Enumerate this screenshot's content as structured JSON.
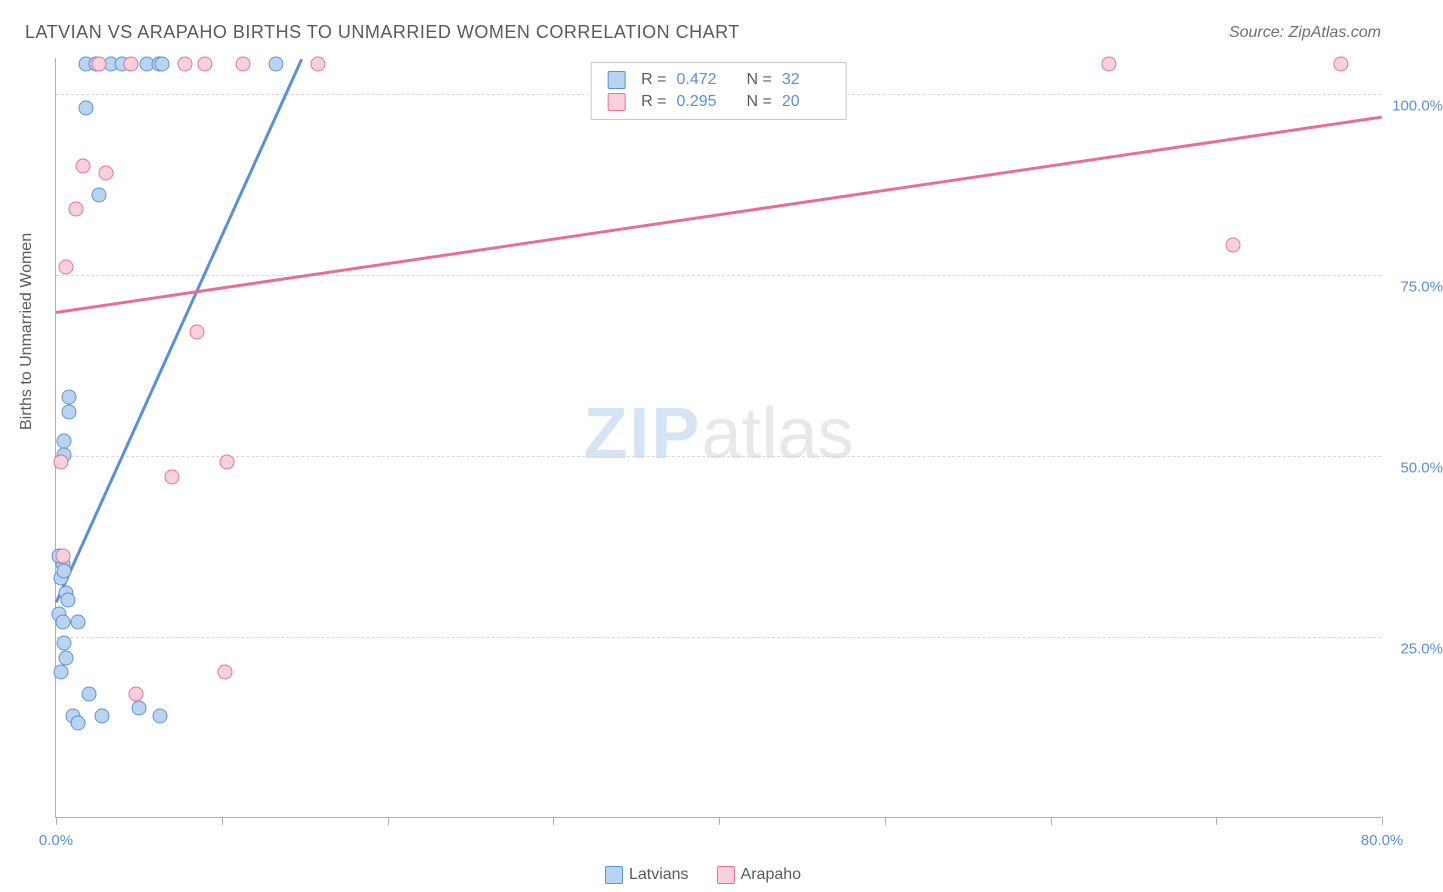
{
  "title": "LATVIAN VS ARAPAHO BIRTHS TO UNMARRIED WOMEN CORRELATION CHART",
  "source": "Source: ZipAtlas.com",
  "y_axis_title": "Births to Unmarried Women",
  "watermark": {
    "zip": "ZIP",
    "atlas": "atlas"
  },
  "chart": {
    "type": "scatter",
    "background_color": "#ffffff",
    "grid_color": "#d8d8d8",
    "axis_color": "#b0b0b0",
    "tick_label_color": "#5b8fd6",
    "axis_title_color": "#5a5a5a",
    "tick_label_fontsize": 15,
    "axis_title_fontsize": 16,
    "title_fontsize": 18,
    "xlim": [
      0,
      80
    ],
    "ylim": [
      0,
      105
    ],
    "y_ticks": [
      {
        "value": 25,
        "label": "25.0%"
      },
      {
        "value": 50,
        "label": "50.0%"
      },
      {
        "value": 75,
        "label": "75.0%"
      },
      {
        "value": 100,
        "label": "100.0%"
      }
    ],
    "x_ticks": [
      {
        "value": 0,
        "label": "0.0%"
      },
      {
        "value": 10,
        "label": ""
      },
      {
        "value": 20,
        "label": ""
      },
      {
        "value": 30,
        "label": ""
      },
      {
        "value": 40,
        "label": ""
      },
      {
        "value": 50,
        "label": ""
      },
      {
        "value": 60,
        "label": ""
      },
      {
        "value": 70,
        "label": ""
      },
      {
        "value": 80,
        "label": "80.0%"
      }
    ],
    "marker_radius": 7.5,
    "marker_border_width": 1.5,
    "marker_fill_opacity": 0.35,
    "series": [
      {
        "name": "Latvians",
        "color_border": "#5b8fd6",
        "color_fill": "#b9d3f0",
        "trend": {
          "x1": 0,
          "y1": 30,
          "x2": 14.8,
          "y2": 105,
          "width": 2.5
        },
        "points": [
          {
            "x": 0.4,
            "y": 35
          },
          {
            "x": 0.3,
            "y": 33
          },
          {
            "x": 0.2,
            "y": 36
          },
          {
            "x": 0.5,
            "y": 34
          },
          {
            "x": 0.6,
            "y": 31
          },
          {
            "x": 0.7,
            "y": 30
          },
          {
            "x": 0.2,
            "y": 28
          },
          {
            "x": 0.4,
            "y": 27
          },
          {
            "x": 1.3,
            "y": 27
          },
          {
            "x": 0.5,
            "y": 24
          },
          {
            "x": 0.6,
            "y": 22
          },
          {
            "x": 0.3,
            "y": 20
          },
          {
            "x": 1.0,
            "y": 14
          },
          {
            "x": 1.3,
            "y": 13
          },
          {
            "x": 2.8,
            "y": 14
          },
          {
            "x": 2.0,
            "y": 17
          },
          {
            "x": 5.0,
            "y": 15
          },
          {
            "x": 6.3,
            "y": 14
          },
          {
            "x": 0.5,
            "y": 50
          },
          {
            "x": 0.5,
            "y": 52
          },
          {
            "x": 0.8,
            "y": 56
          },
          {
            "x": 0.8,
            "y": 58
          },
          {
            "x": 2.6,
            "y": 86
          },
          {
            "x": 1.8,
            "y": 98
          },
          {
            "x": 1.8,
            "y": 104
          },
          {
            "x": 2.4,
            "y": 104
          },
          {
            "x": 3.3,
            "y": 104
          },
          {
            "x": 4.0,
            "y": 104
          },
          {
            "x": 5.5,
            "y": 104
          },
          {
            "x": 6.2,
            "y": 104
          },
          {
            "x": 6.4,
            "y": 104
          },
          {
            "x": 13.3,
            "y": 104
          }
        ]
      },
      {
        "name": "Arapaho",
        "color_border": "#e66f99",
        "color_fill": "#f7d0de",
        "trend": {
          "x1": 0,
          "y1": 70,
          "x2": 80,
          "y2": 97,
          "width": 2.5
        },
        "points": [
          {
            "x": 0.4,
            "y": 36
          },
          {
            "x": 0.3,
            "y": 49
          },
          {
            "x": 0.6,
            "y": 76
          },
          {
            "x": 1.2,
            "y": 84
          },
          {
            "x": 1.6,
            "y": 90
          },
          {
            "x": 3.0,
            "y": 89
          },
          {
            "x": 4.8,
            "y": 17
          },
          {
            "x": 10.2,
            "y": 20
          },
          {
            "x": 7.0,
            "y": 47
          },
          {
            "x": 10.3,
            "y": 49
          },
          {
            "x": 8.5,
            "y": 67
          },
          {
            "x": 11.3,
            "y": 104
          },
          {
            "x": 7.8,
            "y": 104
          },
          {
            "x": 9.0,
            "y": 104
          },
          {
            "x": 4.5,
            "y": 104
          },
          {
            "x": 2.6,
            "y": 104
          },
          {
            "x": 15.8,
            "y": 104
          },
          {
            "x": 63.5,
            "y": 104
          },
          {
            "x": 71.0,
            "y": 79
          },
          {
            "x": 77.5,
            "y": 104
          }
        ]
      }
    ]
  },
  "stats": [
    {
      "color_border": "#5b8fd6",
      "color_fill": "#b9d3f0",
      "R": "0.472",
      "N": "32"
    },
    {
      "color_border": "#e66f99",
      "color_fill": "#f7d0de",
      "R": "0.295",
      "N": "20"
    }
  ],
  "legend": [
    {
      "label": "Latvians",
      "color_border": "#5b8fd6",
      "color_fill": "#b9d3f0"
    },
    {
      "label": "Arapaho",
      "color_border": "#e66f99",
      "color_fill": "#f7d0de"
    }
  ]
}
